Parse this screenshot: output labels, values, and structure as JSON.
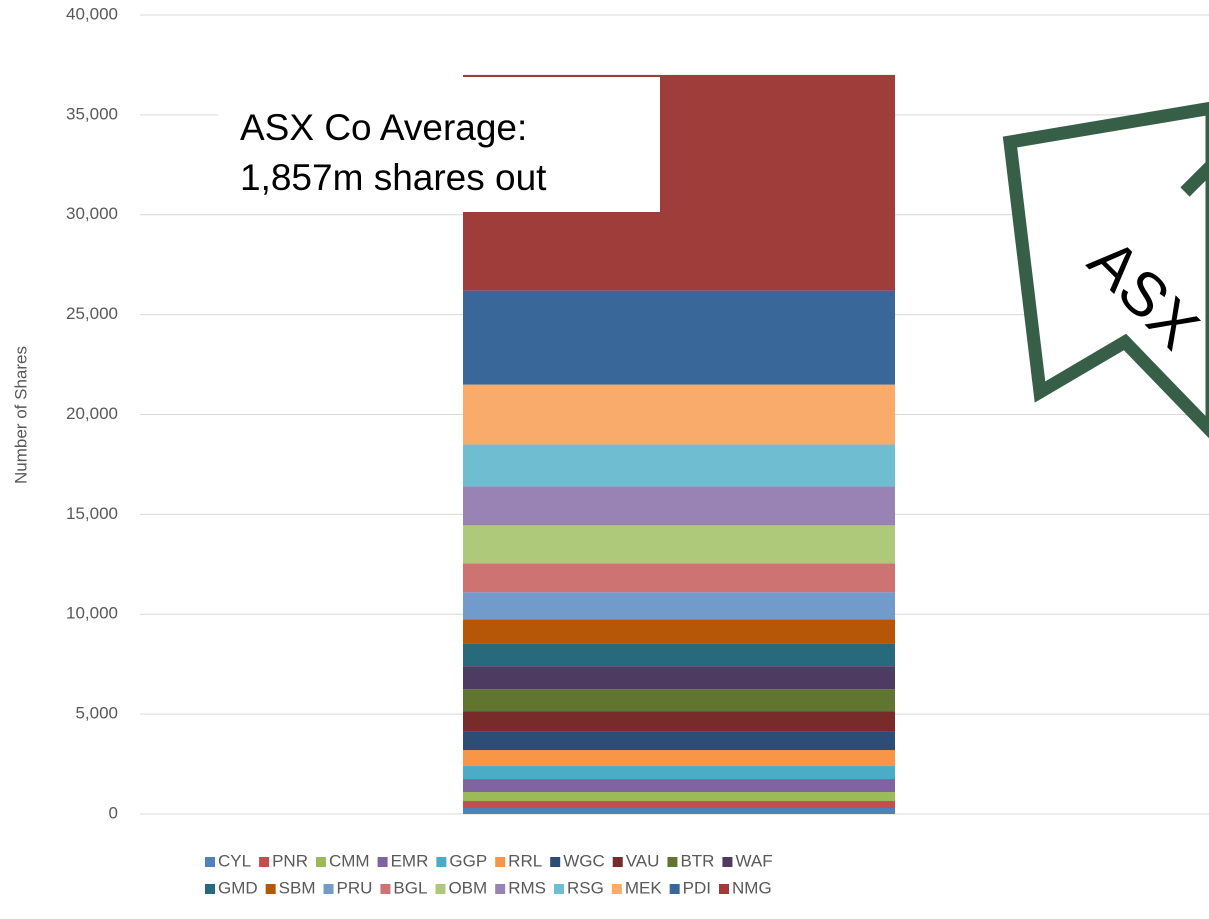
{
  "chart_data": {
    "type": "stacked_bar",
    "y_label": "Number of Shares",
    "categories": [
      null
    ],
    "series": [
      {
        "name": "CYL",
        "color": "#4F81BD",
        "values": [
          300
        ]
      },
      {
        "name": "PNR",
        "color": "#C0504D",
        "values": [
          350
        ]
      },
      {
        "name": "CMM",
        "color": "#9BBB59",
        "values": [
          450
        ]
      },
      {
        "name": "EMR",
        "color": "#8064A2",
        "values": [
          650
        ]
      },
      {
        "name": "GGP",
        "color": "#4BACC6",
        "values": [
          650
        ]
      },
      {
        "name": "RRL",
        "color": "#F79646",
        "values": [
          800
        ]
      },
      {
        "name": "WGC",
        "color": "#2C4D75",
        "values": [
          950
        ]
      },
      {
        "name": "VAU",
        "color": "#772C2A",
        "values": [
          1000
        ]
      },
      {
        "name": "BTR",
        "color": "#5F7530",
        "values": [
          1100
        ]
      },
      {
        "name": "WAF",
        "color": "#4D3B62",
        "values": [
          1150
        ]
      },
      {
        "name": "GMD",
        "color": "#276A7C",
        "values": [
          1150
        ]
      },
      {
        "name": "SBM",
        "color": "#B65708",
        "values": [
          1200
        ]
      },
      {
        "name": "PRU",
        "color": "#729ACA",
        "values": [
          1350
        ]
      },
      {
        "name": "BGL",
        "color": "#CD7371",
        "values": [
          1450
        ]
      },
      {
        "name": "OBM",
        "color": "#AFC97A",
        "values": [
          1900
        ]
      },
      {
        "name": "RMS",
        "color": "#9983B5",
        "values": [
          1950
        ]
      },
      {
        "name": "RSG",
        "color": "#6FBDD1",
        "values": [
          2100
        ]
      },
      {
        "name": "MEK",
        "color": "#F9AB6B",
        "values": [
          3000
        ]
      },
      {
        "name": "PDI",
        "color": "#3A6799",
        "values": [
          4700
        ]
      },
      {
        "name": "NMG",
        "color": "#9E3D3A",
        "values": [
          10800
        ]
      }
    ],
    "ylim": [
      0,
      40000
    ],
    "yticks": [
      0,
      {
        "value": 5000,
        "label": "5,000"
      },
      {
        "value": 10000,
        "label": "10,000"
      },
      {
        "value": 15000,
        "label": "15,000"
      },
      {
        "value": 20000,
        "label": "20,000"
      },
      {
        "value": 25000,
        "label": "25,000"
      },
      {
        "value": 30000,
        "label": "30,000"
      },
      {
        "value": 35000,
        "label": "35,000"
      },
      {
        "value": 40000,
        "label": "40,000"
      }
    ],
    "grid": true,
    "legend": "bottom",
    "annotation": [
      "ASX Co Average:",
      "1,857m shares out"
    ],
    "arrow_label": "ASX"
  }
}
